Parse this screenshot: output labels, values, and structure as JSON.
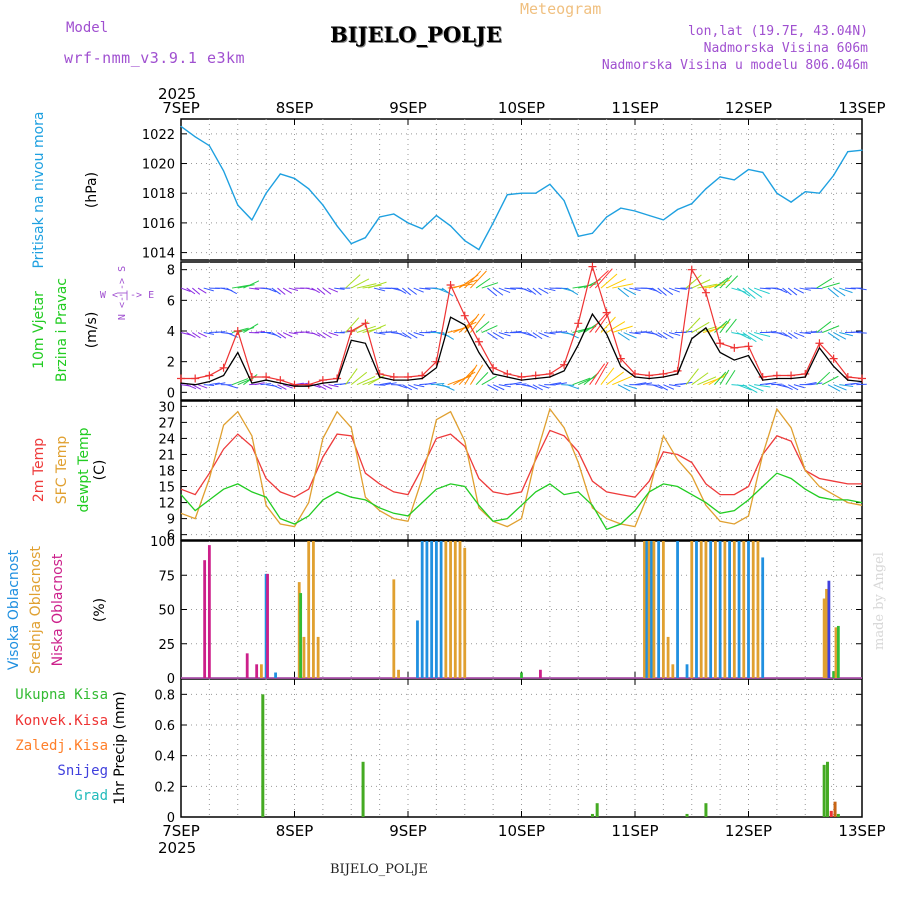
{
  "header": {
    "model_label": "Model",
    "model_name": "wrf-nmm_v3.9.1 e3km",
    "title": "BIJELO_POLJE",
    "meteogram_label": "Meteogram",
    "lonlat": "lon,lat (19.7E, 43.04N)",
    "altitude": "Nadmorska Visina 606m",
    "model_altitude": "Nadmorska Visina u modelu 806.046m",
    "footer_station": "BIJELO_POLJE",
    "made_by": "made by Angel"
  },
  "colors": {
    "pressure": "#1ea0e0",
    "wind_speed": "#000000",
    "wind_gust": "#ee3333",
    "temp_2m": "#ee3b3b",
    "temp_sfc": "#e0a030",
    "dewpoint": "#22cc22",
    "cloud_high": "#2090e0",
    "cloud_mid": "#e0a030",
    "cloud_low": "#cc1f8a",
    "precip_total": "#33bb33",
    "precip_conv": "#ee3333",
    "precip_frozen": "#ff7f2a",
    "snow": "#4040dd",
    "hail": "#22bbbb",
    "header_purple": "#a050d0",
    "header_orange": "#f0c080"
  },
  "time_axis": {
    "year": "2025",
    "days": [
      "7SEP",
      "8SEP",
      "9SEP",
      "10SEP",
      "11SEP",
      "12SEP",
      "13SEP"
    ]
  },
  "chart_data": [
    {
      "type": "line",
      "name": "pressure",
      "ylabel_main": "Pritisak na nivou mora",
      "ylabel_unit": "(hPa)",
      "ylim": [
        1013.5,
        1023
      ],
      "yticks": [
        1014,
        1016,
        1018,
        1020,
        1022
      ],
      "x_hours": [
        0,
        3,
        6,
        9,
        12,
        15,
        18,
        21,
        24,
        27,
        30,
        33,
        36,
        39,
        42,
        45,
        48,
        51,
        54,
        57,
        60,
        63,
        66,
        69,
        72,
        75,
        78,
        81,
        84,
        87,
        90,
        93,
        96,
        99,
        102,
        105,
        108,
        111,
        114,
        117,
        120,
        123,
        126,
        129,
        132,
        135,
        138,
        141,
        144
      ],
      "values": [
        1022.5,
        1021.8,
        1021.2,
        1019.5,
        1017.2,
        1016.2,
        1018.0,
        1019.3,
        1019.0,
        1018.3,
        1017.2,
        1015.8,
        1014.6,
        1015.0,
        1016.4,
        1016.6,
        1016.0,
        1015.6,
        1016.5,
        1015.8,
        1014.8,
        1014.2,
        1016.0,
        1017.9,
        1018.0,
        1018.0,
        1018.6,
        1017.5,
        1015.1,
        1015.3,
        1016.4,
        1017.0,
        1016.8,
        1016.5,
        1016.2,
        1016.9,
        1017.3,
        1018.3,
        1019.1,
        1018.9,
        1019.6,
        1019.4,
        1018.0,
        1017.4,
        1018.1,
        1018.0,
        1019.2,
        1020.8,
        1020.9
      ]
    },
    {
      "type": "line",
      "name": "wind",
      "ylabel_main": "10m Vjetar",
      "ylabel_sub": "Brzina i Pravac",
      "ylabel_unit": "(m/s)",
      "compass": "W <-|-> E",
      "compass_v": "N <-|-> S",
      "ylim": [
        -0.5,
        8.5
      ],
      "yticks": [
        0,
        2,
        4,
        6,
        8
      ],
      "x_hours": [
        0,
        3,
        6,
        9,
        12,
        15,
        18,
        21,
        24,
        27,
        30,
        33,
        36,
        39,
        42,
        45,
        48,
        51,
        54,
        57,
        60,
        63,
        66,
        69,
        72,
        75,
        78,
        81,
        84,
        87,
        90,
        93,
        96,
        99,
        102,
        105,
        108,
        111,
        114,
        117,
        120,
        123,
        126,
        129,
        132,
        135,
        138,
        141,
        144
      ],
      "series": [
        {
          "name": "speed",
          "values": [
            0.6,
            0.5,
            0.7,
            1.1,
            2.6,
            0.6,
            0.8,
            0.6,
            0.4,
            0.4,
            0.6,
            0.7,
            3.4,
            3.2,
            1.0,
            0.8,
            0.8,
            0.9,
            1.6,
            4.9,
            4.4,
            2.6,
            1.2,
            1.0,
            0.8,
            0.9,
            1.0,
            1.4,
            3.1,
            5.1,
            3.8,
            1.7,
            1.0,
            0.9,
            1.0,
            1.2,
            3.5,
            4.2,
            2.6,
            2.1,
            2.4,
            0.8,
            0.9,
            0.9,
            1.0,
            2.9,
            1.7,
            0.8,
            0.7
          ]
        },
        {
          "name": "gust",
          "values": [
            0.9,
            0.9,
            1.1,
            1.6,
            4.0,
            1.0,
            1.0,
            0.8,
            0.5,
            0.5,
            0.8,
            0.9,
            4.0,
            4.5,
            1.2,
            1.0,
            1.0,
            1.1,
            2.0,
            7.0,
            5.0,
            3.3,
            1.6,
            1.2,
            1.0,
            1.1,
            1.2,
            1.8,
            4.5,
            8.2,
            5.2,
            2.2,
            1.2,
            1.1,
            1.2,
            1.4,
            8.0,
            6.5,
            3.2,
            2.9,
            3.0,
            1.0,
            1.1,
            1.1,
            1.2,
            3.2,
            2.2,
            1.0,
            0.9
          ]
        }
      ],
      "arrow_rows": [
        0.5,
        3.9,
        6.8
      ]
    },
    {
      "type": "line",
      "name": "temperature",
      "ylabels": [
        "2m Temp",
        "SFC Temp",
        "dewpt Temp"
      ],
      "ylabel_unit": "(C)",
      "ylim": [
        5,
        31
      ],
      "yticks": [
        6,
        9,
        12,
        15,
        18,
        21,
        24,
        27,
        30
      ],
      "x_hours": [
        0,
        3,
        6,
        9,
        12,
        15,
        18,
        21,
        24,
        27,
        30,
        33,
        36,
        39,
        42,
        45,
        48,
        51,
        54,
        57,
        60,
        63,
        66,
        69,
        72,
        75,
        78,
        81,
        84,
        87,
        90,
        93,
        96,
        99,
        102,
        105,
        108,
        111,
        114,
        117,
        120,
        123,
        126,
        129,
        132,
        135,
        138,
        141,
        144
      ],
      "series": [
        {
          "name": "2m",
          "values": [
            14.5,
            13.5,
            17.5,
            22.0,
            24.8,
            22.5,
            16.5,
            14.0,
            13.0,
            14.5,
            20.5,
            24.8,
            24.5,
            17.5,
            15.5,
            14.0,
            13.5,
            18.5,
            24.0,
            24.8,
            22.5,
            16.5,
            14.0,
            13.5,
            14.0,
            20.0,
            25.5,
            24.5,
            21.5,
            16.0,
            14.0,
            13.5,
            13.0,
            16.0,
            21.5,
            21.0,
            19.5,
            15.5,
            13.5,
            13.5,
            15.0,
            21.0,
            24.5,
            23.5,
            18.0,
            16.5,
            16.0,
            15.5,
            15.5
          ]
        },
        {
          "name": "sfc",
          "values": [
            10.0,
            9.0,
            16.5,
            26.5,
            29.0,
            24.5,
            11.5,
            8.0,
            7.5,
            12.0,
            24.0,
            29.0,
            26.0,
            13.0,
            10.5,
            9.0,
            8.5,
            16.5,
            27.5,
            29.0,
            23.5,
            11.0,
            8.5,
            7.5,
            9.0,
            20.5,
            29.5,
            26.0,
            19.5,
            11.0,
            9.0,
            8.0,
            7.5,
            14.0,
            24.5,
            20.0,
            17.0,
            11.5,
            8.5,
            8.0,
            9.5,
            21.0,
            29.5,
            26.0,
            18.0,
            15.0,
            13.5,
            12.0,
            11.5
          ]
        },
        {
          "name": "dewpoint",
          "values": [
            13.5,
            10.5,
            12.5,
            14.5,
            15.5,
            14.0,
            13.0,
            9.0,
            8.0,
            9.5,
            12.5,
            14.0,
            13.0,
            12.5,
            11.0,
            10.0,
            9.5,
            12.0,
            14.5,
            15.5,
            15.0,
            11.5,
            8.5,
            9.0,
            11.5,
            14.0,
            15.5,
            13.5,
            14.0,
            11.5,
            7.0,
            8.0,
            10.5,
            14.0,
            15.5,
            15.0,
            13.5,
            12.0,
            10.0,
            10.5,
            12.5,
            15.0,
            17.5,
            16.5,
            14.5,
            13.0,
            12.5,
            12.5,
            12.0
          ]
        }
      ]
    },
    {
      "type": "bar",
      "name": "cloud_cover",
      "ylabels": [
        "Visoka Oblacnost",
        "Srednja Oblacnost",
        "Niska Oblacnost"
      ],
      "ylabel_unit": "(%)",
      "ylim": [
        0,
        100
      ],
      "yticks": [
        0,
        25,
        50,
        75,
        100
      ],
      "bars": [
        {
          "h": 5,
          "layer": "low",
          "v": 86
        },
        {
          "h": 6,
          "layer": "low",
          "v": 97
        },
        {
          "h": 14,
          "layer": "low",
          "v": 18
        },
        {
          "h": 16,
          "layer": "low",
          "v": 10
        },
        {
          "h": 17,
          "layer": "mid",
          "v": 10
        },
        {
          "h": 18,
          "layer": "high",
          "v": 76
        },
        {
          "h": 18.3,
          "layer": "low",
          "v": 76
        },
        {
          "h": 20,
          "layer": "high",
          "v": 4
        },
        {
          "h": 25,
          "layer": "mid",
          "v": 70
        },
        {
          "h": 25.3,
          "layer": "total",
          "v": 62
        },
        {
          "h": 26,
          "layer": "mid",
          "v": 30
        },
        {
          "h": 27,
          "layer": "mid",
          "v": 100
        },
        {
          "h": 28,
          "layer": "mid",
          "v": 100
        },
        {
          "h": 29,
          "layer": "mid",
          "v": 30
        },
        {
          "h": 45,
          "layer": "mid",
          "v": 72
        },
        {
          "h": 46,
          "layer": "mid",
          "v": 6
        },
        {
          "h": 50,
          "layer": "high",
          "v": 42
        },
        {
          "h": 51,
          "layer": "high",
          "v": 100
        },
        {
          "h": 52,
          "layer": "high",
          "v": 100
        },
        {
          "h": 53,
          "layer": "high",
          "v": 100
        },
        {
          "h": 54,
          "layer": "high",
          "v": 100
        },
        {
          "h": 55,
          "layer": "high",
          "v": 100
        },
        {
          "h": 56,
          "layer": "mid",
          "v": 100
        },
        {
          "h": 57,
          "layer": "mid",
          "v": 100
        },
        {
          "h": 58,
          "layer": "mid",
          "v": 100
        },
        {
          "h": 59,
          "layer": "mid",
          "v": 100
        },
        {
          "h": 60,
          "layer": "mid",
          "v": 95
        },
        {
          "h": 72,
          "layer": "total",
          "v": 4
        },
        {
          "h": 76,
          "layer": "low",
          "v": 6
        },
        {
          "h": 98,
          "layer": "mid",
          "v": 100
        },
        {
          "h": 98.5,
          "layer": "high",
          "v": 100
        },
        {
          "h": 99,
          "layer": "mid",
          "v": 100
        },
        {
          "h": 99.5,
          "layer": "high",
          "v": 100
        },
        {
          "h": 100,
          "layer": "mid",
          "v": 100
        },
        {
          "h": 101,
          "layer": "high",
          "v": 100
        },
        {
          "h": 102,
          "layer": "mid",
          "v": 100
        },
        {
          "h": 103,
          "layer": "mid",
          "v": 30
        },
        {
          "h": 104,
          "layer": "mid",
          "v": 10
        },
        {
          "h": 105,
          "layer": "high",
          "v": 100
        },
        {
          "h": 107,
          "layer": "high",
          "v": 10
        },
        {
          "h": 108,
          "layer": "mid",
          "v": 100
        },
        {
          "h": 109,
          "layer": "high",
          "v": 100
        },
        {
          "h": 110,
          "layer": "mid",
          "v": 100
        },
        {
          "h": 111,
          "layer": "mid",
          "v": 100
        },
        {
          "h": 112,
          "layer": "high",
          "v": 100
        },
        {
          "h": 113,
          "layer": "mid",
          "v": 100
        },
        {
          "h": 114,
          "layer": "high",
          "v": 100
        },
        {
          "h": 115,
          "layer": "mid",
          "v": 100
        },
        {
          "h": 116,
          "layer": "high",
          "v": 100
        },
        {
          "h": 117,
          "layer": "mid",
          "v": 100
        },
        {
          "h": 118,
          "layer": "high",
          "v": 100
        },
        {
          "h": 119,
          "layer": "mid",
          "v": 100
        },
        {
          "h": 120,
          "layer": "high",
          "v": 100
        },
        {
          "h": 121,
          "layer": "mid",
          "v": 100
        },
        {
          "h": 122,
          "layer": "mid",
          "v": 100
        },
        {
          "h": 123,
          "layer": "high",
          "v": 88
        },
        {
          "h": 136,
          "layer": "mid",
          "v": 58
        },
        {
          "h": 136.5,
          "layer": "mid",
          "v": 65
        },
        {
          "h": 137,
          "layer": "snow",
          "v": 71
        },
        {
          "h": 138,
          "layer": "total",
          "v": 5
        },
        {
          "h": 138.5,
          "layer": "mid",
          "v": 37
        },
        {
          "h": 139,
          "layer": "total",
          "v": 38
        }
      ]
    },
    {
      "type": "bar",
      "name": "precipitation",
      "ylabel_unit": "1hr Precip (mm)",
      "legend": [
        "Ukupna Kisa",
        "Konvek.Kisa",
        "Zaledj.Kisa",
        "Snijeg",
        "Grad"
      ],
      "ylim": [
        0,
        0.9
      ],
      "yticks": [
        0,
        0.2,
        0.4,
        0.6,
        0.8
      ],
      "bars": [
        {
          "h": 17.3,
          "layer": "total",
          "v": 0.8
        },
        {
          "h": 38.5,
          "layer": "total",
          "v": 0.36
        },
        {
          "h": 87,
          "layer": "total",
          "v": 0.02
        },
        {
          "h": 88,
          "layer": "total",
          "v": 0.09
        },
        {
          "h": 107,
          "layer": "total",
          "v": 0.02
        },
        {
          "h": 111,
          "layer": "total",
          "v": 0.09
        },
        {
          "h": 136,
          "layer": "total",
          "v": 0.34
        },
        {
          "h": 136.7,
          "layer": "total",
          "v": 0.36
        },
        {
          "h": 137.5,
          "layer": "conv",
          "v": 0.04
        },
        {
          "h": 138.3,
          "layer": "frozen",
          "v": 0.1
        },
        {
          "h": 139,
          "layer": "total",
          "v": 0.02
        }
      ]
    }
  ]
}
